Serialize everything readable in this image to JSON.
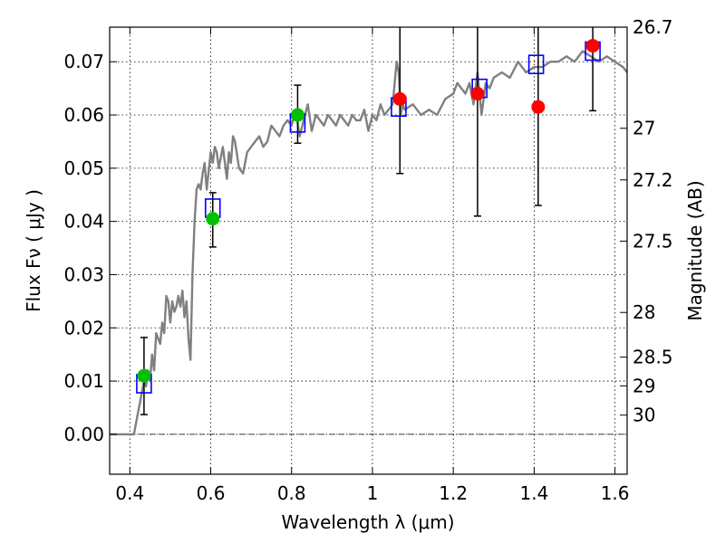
{
  "chart_data": {
    "type": "line",
    "xlabel": "Wavelength  λ (μm)",
    "ylabel_left": "Flux  Fν  ( μJy )",
    "ylabel_right": "Magnitude (AB)",
    "xlim": [
      0.35,
      1.63
    ],
    "ylim": [
      -0.0075,
      0.0765
    ],
    "grid": true,
    "x_ticks": [
      0.4,
      0.6,
      0.8,
      1.0,
      1.2,
      1.4,
      1.6
    ],
    "x_tick_labels": [
      "0.4",
      "0.6",
      "0.8",
      "1",
      "1.2",
      "1.4",
      "1.6"
    ],
    "y_ticks": [
      0.0,
      0.01,
      0.02,
      0.03,
      0.04,
      0.05,
      0.06,
      0.07
    ],
    "y_tick_labels": [
      "0.00",
      "0.01",
      "0.02",
      "0.03",
      "0.04",
      "0.05",
      "0.06",
      "0.07"
    ],
    "mag_ticks": [
      {
        "label": "26.7",
        "flux": 0.0765
      },
      {
        "label": "27",
        "flux": 0.0575
      },
      {
        "label": "27.2",
        "flux": 0.0478
      },
      {
        "label": "27.5",
        "flux": 0.0363
      },
      {
        "label": "28",
        "flux": 0.0229
      },
      {
        "label": "28.5",
        "flux": 0.0145
      },
      {
        "label": "29",
        "flux": 0.0091
      },
      {
        "label": "30",
        "flux": 0.0036
      }
    ],
    "zero_line": 0.0,
    "colors": {
      "model": "#808080",
      "green": "#00c000",
      "red": "#ff0000",
      "box": "#0000ff",
      "error": "#000000"
    },
    "series": [
      {
        "name": "model-spectrum",
        "kind": "line",
        "x": [
          0.35,
          0.41,
          0.415,
          0.42,
          0.425,
          0.43,
          0.435,
          0.44,
          0.445,
          0.45,
          0.455,
          0.46,
          0.465,
          0.47,
          0.475,
          0.48,
          0.485,
          0.49,
          0.495,
          0.5,
          0.505,
          0.51,
          0.515,
          0.52,
          0.525,
          0.53,
          0.535,
          0.54,
          0.545,
          0.55,
          0.555,
          0.56,
          0.565,
          0.57,
          0.575,
          0.58,
          0.585,
          0.59,
          0.6,
          0.605,
          0.61,
          0.615,
          0.62,
          0.625,
          0.63,
          0.64,
          0.645,
          0.65,
          0.655,
          0.66,
          0.67,
          0.68,
          0.69,
          0.7,
          0.71,
          0.72,
          0.73,
          0.74,
          0.75,
          0.76,
          0.77,
          0.78,
          0.79,
          0.8,
          0.81,
          0.82,
          0.83,
          0.84,
          0.85,
          0.86,
          0.87,
          0.88,
          0.89,
          0.9,
          0.91,
          0.92,
          0.93,
          0.94,
          0.95,
          0.96,
          0.97,
          0.98,
          0.99,
          1.0,
          1.01,
          1.02,
          1.03,
          1.04,
          1.05,
          1.06,
          1.065,
          1.07,
          1.075,
          1.08,
          1.1,
          1.12,
          1.14,
          1.16,
          1.18,
          1.2,
          1.21,
          1.22,
          1.23,
          1.24,
          1.25,
          1.26,
          1.27,
          1.28,
          1.29,
          1.3,
          1.32,
          1.34,
          1.36,
          1.38,
          1.4,
          1.42,
          1.44,
          1.46,
          1.48,
          1.5,
          1.52,
          1.54,
          1.56,
          1.58,
          1.6,
          1.62,
          1.63
        ],
        "y": [
          0.0,
          0.0,
          0.002,
          0.004,
          0.006,
          0.008,
          0.01,
          0.009,
          0.012,
          0.01,
          0.015,
          0.012,
          0.019,
          0.018,
          0.017,
          0.021,
          0.019,
          0.026,
          0.025,
          0.021,
          0.025,
          0.023,
          0.024,
          0.026,
          0.024,
          0.027,
          0.022,
          0.025,
          0.018,
          0.014,
          0.03,
          0.04,
          0.046,
          0.047,
          0.046,
          0.049,
          0.051,
          0.046,
          0.053,
          0.051,
          0.054,
          0.053,
          0.05,
          0.052,
          0.054,
          0.048,
          0.053,
          0.051,
          0.056,
          0.055,
          0.05,
          0.049,
          0.053,
          0.054,
          0.055,
          0.056,
          0.054,
          0.055,
          0.058,
          0.057,
          0.056,
          0.058,
          0.059,
          0.058,
          0.061,
          0.056,
          0.059,
          0.062,
          0.057,
          0.06,
          0.059,
          0.058,
          0.06,
          0.059,
          0.058,
          0.06,
          0.059,
          0.058,
          0.06,
          0.059,
          0.059,
          0.061,
          0.057,
          0.06,
          0.059,
          0.062,
          0.06,
          0.061,
          0.062,
          0.07,
          0.068,
          0.06,
          0.062,
          0.061,
          0.062,
          0.06,
          0.061,
          0.06,
          0.063,
          0.064,
          0.066,
          0.065,
          0.064,
          0.066,
          0.062,
          0.068,
          0.06,
          0.066,
          0.065,
          0.067,
          0.068,
          0.067,
          0.07,
          0.068,
          0.069,
          0.069,
          0.07,
          0.07,
          0.071,
          0.07,
          0.072,
          0.071,
          0.07,
          0.071,
          0.07,
          0.069,
          0.068
        ]
      },
      {
        "name": "green-points",
        "kind": "scatter",
        "x": [
          0.435,
          0.605,
          0.815
        ],
        "y": [
          0.011,
          0.0405,
          0.06
        ],
        "err_lo": [
          0.0037,
          0.0352,
          0.0547
        ],
        "err_hi": [
          0.0182,
          0.0454,
          0.0656
        ]
      },
      {
        "name": "red-points",
        "kind": "scatter",
        "x": [
          1.068,
          1.26,
          1.41,
          1.545
        ],
        "y": [
          0.063,
          0.064,
          0.0615,
          0.073
        ],
        "err_lo": [
          0.049,
          0.041,
          0.043,
          0.0608
        ],
        "err_hi": [
          0.0765,
          0.0765,
          0.0765,
          0.0765
        ]
      },
      {
        "name": "model-boxes",
        "kind": "box",
        "x": [
          0.435,
          0.605,
          0.815,
          1.065,
          1.265,
          1.405,
          1.545
        ],
        "y": [
          0.0095,
          0.0425,
          0.0585,
          0.0615,
          0.065,
          0.0695,
          0.072
        ]
      }
    ]
  }
}
